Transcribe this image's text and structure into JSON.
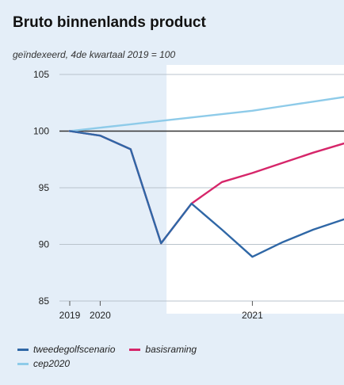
{
  "chart_data": {
    "type": "line",
    "title": "Bruto binnenlands product",
    "subtitle": "geïndexeerd, 4de kwartaal 2019 = 100",
    "xlabel": "",
    "ylabel": "",
    "ylim": [
      85,
      105
    ],
    "yticks": [
      "85",
      "90",
      "95",
      "100",
      "105"
    ],
    "xticks": [
      {
        "label": "2019",
        "at": "2019-Q4"
      },
      {
        "label": "2020",
        "at": "2020-Q1"
      },
      {
        "label": "2021",
        "at": "2021-Q2"
      }
    ],
    "x": [
      "2019-Q4",
      "2020-Q1",
      "2020-Q2",
      "2020-Q3",
      "2020-Q4",
      "2021-Q1",
      "2021-Q2",
      "2021-Q3",
      "2021-Q4",
      "2022-Q1"
    ],
    "shaded_until": "2020-Q3",
    "reference_line": 100,
    "grid": true,
    "legend_position": "bottom",
    "series": [
      {
        "name": "tweedegolfscenario",
        "color": "#2f67a6",
        "values": [
          100,
          99.6,
          98.4,
          90.1,
          93.6,
          91.3,
          88.9,
          90.2,
          91.3,
          92.2
        ]
      },
      {
        "name": "basisraming",
        "color": "#d6266a",
        "values": [
          100,
          99.6,
          98.4,
          90.1,
          93.6,
          95.5,
          96.3,
          97.2,
          98.1,
          98.9
        ]
      },
      {
        "name": "cep2020",
        "color": "#8ecbe9",
        "values": [
          100,
          100.3,
          100.6,
          100.9,
          101.2,
          101.5,
          101.8,
          102.2,
          102.6,
          103.0
        ]
      }
    ]
  }
}
